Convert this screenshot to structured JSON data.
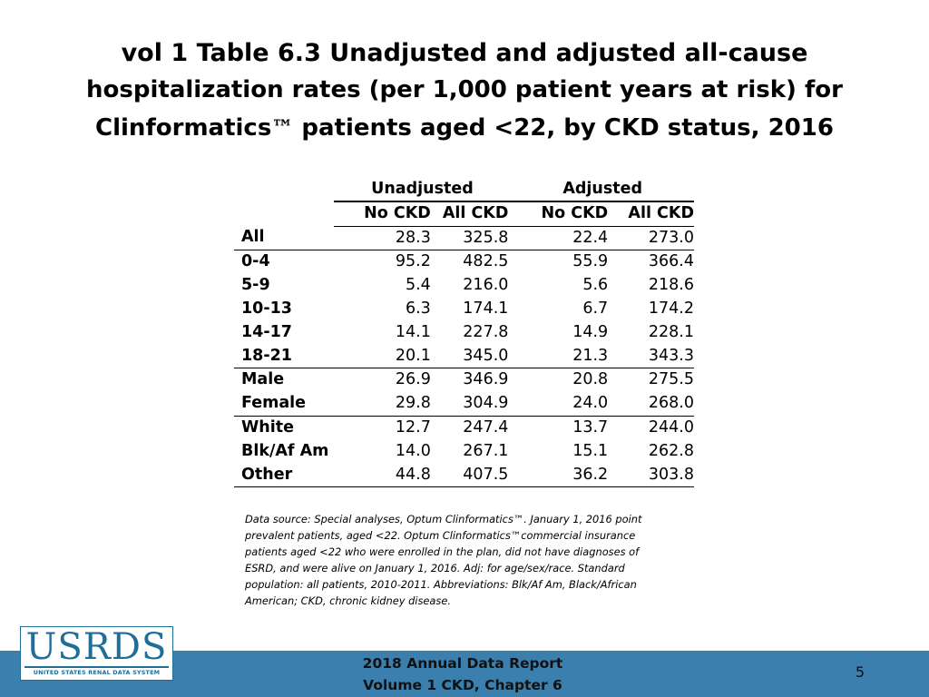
{
  "title": {
    "line1": "vol 1 Table 6.3  Unadjusted and adjusted all-cause",
    "line2": "hospitalization rates (per 1,000 patient years at risk) for",
    "line3_pre": "Clinformatics",
    "line3_tm": "™",
    "line3_post": " patients aged <22, by CKD status, 2016"
  },
  "table": {
    "group_headers": [
      "Unadjusted",
      "Adjusted"
    ],
    "columns": [
      "No CKD",
      "All CKD",
      "No CKD",
      "All CKD"
    ],
    "rows": [
      {
        "label": "All",
        "values": [
          "28.3",
          "325.8",
          "22.4",
          "273.0"
        ]
      },
      {
        "label": "0-4",
        "values": [
          "95.2",
          "482.5",
          "55.9",
          "366.4"
        ]
      },
      {
        "label": "5-9",
        "values": [
          "5.4",
          "216.0",
          "5.6",
          "218.6"
        ]
      },
      {
        "label": "10-13",
        "values": [
          "6.3",
          "174.1",
          "6.7",
          "174.2"
        ]
      },
      {
        "label": "14-17",
        "values": [
          "14.1",
          "227.8",
          "14.9",
          "228.1"
        ]
      },
      {
        "label": "18-21",
        "values": [
          "20.1",
          "345.0",
          "21.3",
          "343.3"
        ]
      },
      {
        "label": "Male",
        "values": [
          "26.9",
          "346.9",
          "20.8",
          "275.5"
        ]
      },
      {
        "label": "Female",
        "values": [
          "29.8",
          "304.9",
          "24.0",
          "268.0"
        ]
      },
      {
        "label": "White",
        "values": [
          "12.7",
          "247.4",
          "13.7",
          "244.0"
        ]
      },
      {
        "label": "Blk/Af Am",
        "values": [
          "14.0",
          "267.1",
          "15.1",
          "262.8"
        ]
      },
      {
        "label": "Other",
        "values": [
          "44.8",
          "407.5",
          "36.2",
          "303.8"
        ]
      }
    ]
  },
  "note": "Data source: Special analyses, Optum Clinformatics™. January 1, 2016 point prevalent patients, aged <22. Optum Clinformatics™commercial insurance patients aged <22 who were enrolled in the plan, did not have diagnoses of ESRD, and were alive on January 1, 2016. Adj: for age/sex/race. Standard population: all patients, 2010-2011. Abbreviations: Blk/Af Am, Black/African American; CKD, chronic kidney disease.",
  "footer": {
    "report_line1": "2018 Annual Data Report",
    "report_line2": "Volume 1 CKD, Chapter 6",
    "page_number": "5"
  },
  "logo": {
    "mark": "USRDS",
    "subtitle": "UNITED STATES RENAL DATA SYSTEM"
  },
  "colors": {
    "footer_band": "#3b7fae",
    "logo": "#1f6e98"
  }
}
